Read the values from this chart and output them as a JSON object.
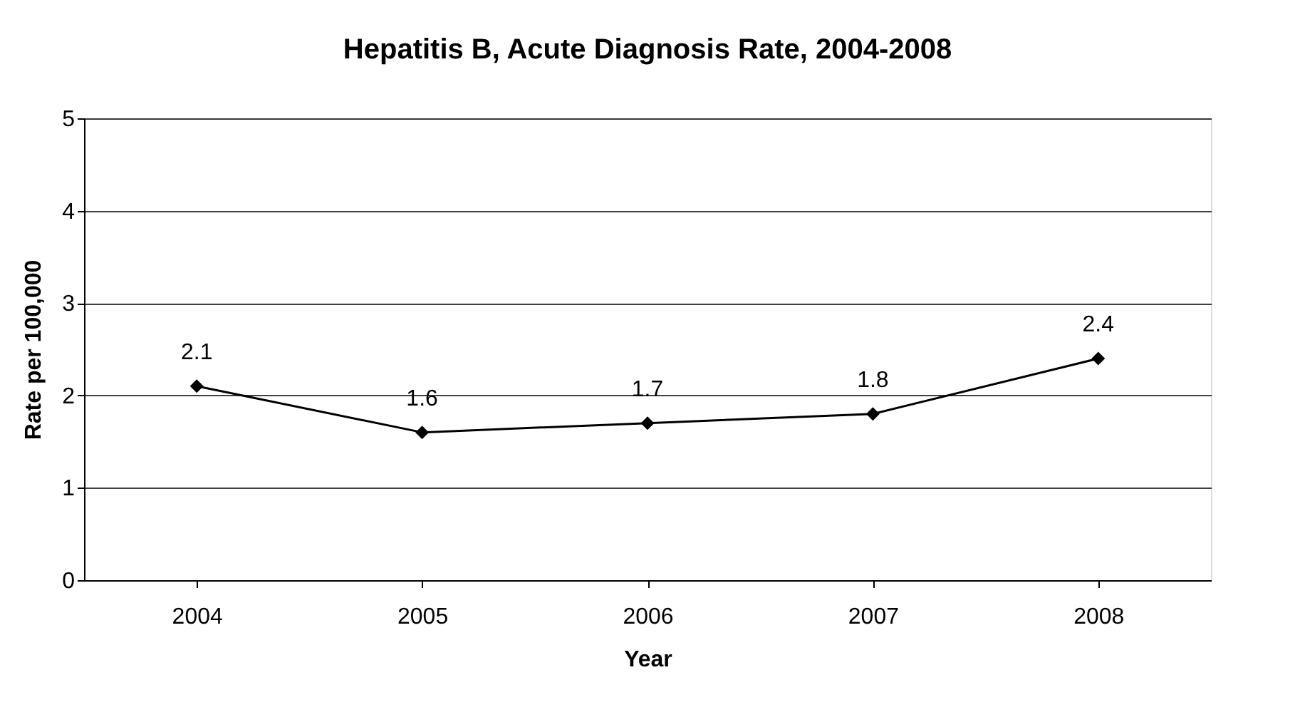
{
  "chart_data": {
    "type": "line",
    "title": "Hepatitis B, Acute Diagnosis Rate, 2004-2008",
    "xlabel": "Year",
    "ylabel": "Rate per 100,000",
    "categories": [
      "2004",
      "2005",
      "2006",
      "2007",
      "2008"
    ],
    "series": [
      {
        "color": "#000000",
        "values": [
          2.1,
          1.6,
          1.7,
          1.8,
          2.4
        ]
      }
    ],
    "ylim": [
      0,
      5
    ],
    "yticks": [
      0,
      1,
      2,
      3,
      4,
      5
    ],
    "grid": "y",
    "marker": "diamond",
    "line_style": "solid",
    "data_labels": true
  }
}
